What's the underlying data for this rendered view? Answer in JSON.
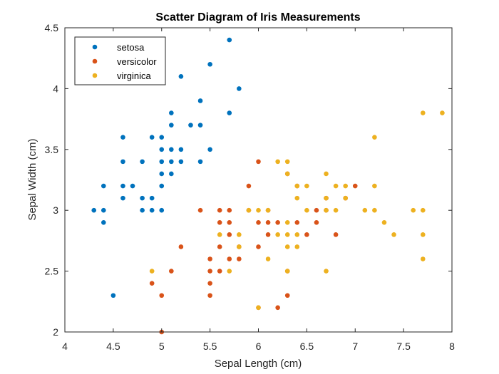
{
  "chart_data": {
    "type": "scatter",
    "title": "Scatter Diagram of Iris Measurements",
    "xlabel": "Sepal Length (cm)",
    "ylabel": "Sepal Width (cm)",
    "xlim": [
      4,
      8
    ],
    "ylim": [
      2,
      4.5
    ],
    "xticks": [
      4,
      4.5,
      5,
      5.5,
      6,
      6.5,
      7,
      7.5,
      8
    ],
    "xtick_labels": [
      "4",
      "4.5",
      "5",
      "5.5",
      "6",
      "6.5",
      "7",
      "7.5",
      "8"
    ],
    "yticks": [
      2,
      2.5,
      3,
      3.5,
      4,
      4.5
    ],
    "ytick_labels": [
      "2",
      "2.5",
      "3",
      "3.5",
      "4",
      "4.5"
    ],
    "grid": false,
    "legend_position": "top-left",
    "series": [
      {
        "name": "setosa",
        "color": "#0072BD",
        "points": [
          [
            4.3,
            3.0
          ],
          [
            4.4,
            3.0
          ],
          [
            4.4,
            2.9
          ],
          [
            4.4,
            3.2
          ],
          [
            4.5,
            2.3
          ],
          [
            4.6,
            3.1
          ],
          [
            4.6,
            3.2
          ],
          [
            4.6,
            3.4
          ],
          [
            4.6,
            3.6
          ],
          [
            4.7,
            3.2
          ],
          [
            4.8,
            3.0
          ],
          [
            4.8,
            3.1
          ],
          [
            4.8,
            3.4
          ],
          [
            4.9,
            3.0
          ],
          [
            4.9,
            3.1
          ],
          [
            4.9,
            3.6
          ],
          [
            5.0,
            3.0
          ],
          [
            5.0,
            3.2
          ],
          [
            5.0,
            3.3
          ],
          [
            5.0,
            3.4
          ],
          [
            5.0,
            3.5
          ],
          [
            5.0,
            3.6
          ],
          [
            5.1,
            3.3
          ],
          [
            5.1,
            3.4
          ],
          [
            5.1,
            3.5
          ],
          [
            5.1,
            3.7
          ],
          [
            5.1,
            3.8
          ],
          [
            5.2,
            3.4
          ],
          [
            5.2,
            3.5
          ],
          [
            5.2,
            4.1
          ],
          [
            5.3,
            3.7
          ],
          [
            5.4,
            3.4
          ],
          [
            5.4,
            3.7
          ],
          [
            5.4,
            3.9
          ],
          [
            5.5,
            3.5
          ],
          [
            5.5,
            4.2
          ],
          [
            5.7,
            3.8
          ],
          [
            5.7,
            4.4
          ],
          [
            5.8,
            4.0
          ]
        ]
      },
      {
        "name": "versicolor",
        "color": "#D95319",
        "points": [
          [
            4.9,
            2.4
          ],
          [
            5.0,
            2.0
          ],
          [
            5.0,
            2.3
          ],
          [
            5.1,
            2.5
          ],
          [
            5.2,
            2.7
          ],
          [
            5.4,
            3.0
          ],
          [
            5.5,
            2.3
          ],
          [
            5.5,
            2.4
          ],
          [
            5.5,
            2.5
          ],
          [
            5.5,
            2.6
          ],
          [
            5.6,
            2.5
          ],
          [
            5.6,
            2.7
          ],
          [
            5.6,
            2.9
          ],
          [
            5.6,
            3.0
          ],
          [
            5.7,
            2.6
          ],
          [
            5.7,
            2.8
          ],
          [
            5.7,
            2.9
          ],
          [
            5.7,
            3.0
          ],
          [
            5.8,
            2.6
          ],
          [
            5.8,
            2.7
          ],
          [
            5.9,
            3.0
          ],
          [
            5.9,
            3.2
          ],
          [
            6.0,
            2.2
          ],
          [
            6.0,
            2.7
          ],
          [
            6.0,
            2.9
          ],
          [
            6.0,
            3.4
          ],
          [
            6.1,
            2.8
          ],
          [
            6.1,
            2.9
          ],
          [
            6.1,
            3.0
          ],
          [
            6.2,
            2.2
          ],
          [
            6.2,
            2.9
          ],
          [
            6.3,
            2.3
          ],
          [
            6.3,
            2.5
          ],
          [
            6.3,
            3.3
          ],
          [
            6.4,
            2.9
          ],
          [
            6.4,
            3.2
          ],
          [
            6.5,
            2.8
          ],
          [
            6.6,
            2.9
          ],
          [
            6.6,
            3.0
          ],
          [
            6.7,
            3.0
          ],
          [
            6.7,
            3.1
          ],
          [
            6.8,
            2.8
          ],
          [
            6.9,
            3.1
          ],
          [
            7.0,
            3.2
          ]
        ]
      },
      {
        "name": "virginica",
        "color": "#EDB120",
        "points": [
          [
            4.9,
            2.5
          ],
          [
            5.6,
            2.8
          ],
          [
            5.7,
            2.5
          ],
          [
            5.8,
            2.7
          ],
          [
            5.8,
            2.8
          ],
          [
            5.9,
            3.0
          ],
          [
            6.0,
            2.2
          ],
          [
            6.0,
            3.0
          ],
          [
            6.1,
            2.6
          ],
          [
            6.1,
            3.0
          ],
          [
            6.2,
            2.8
          ],
          [
            6.2,
            3.4
          ],
          [
            6.3,
            2.5
          ],
          [
            6.3,
            2.7
          ],
          [
            6.3,
            2.8
          ],
          [
            6.3,
            2.9
          ],
          [
            6.3,
            3.3
          ],
          [
            6.3,
            3.4
          ],
          [
            6.4,
            2.7
          ],
          [
            6.4,
            2.8
          ],
          [
            6.4,
            3.1
          ],
          [
            6.4,
            3.2
          ],
          [
            6.5,
            3.0
          ],
          [
            6.5,
            3.2
          ],
          [
            6.7,
            2.5
          ],
          [
            6.7,
            3.0
          ],
          [
            6.7,
            3.1
          ],
          [
            6.7,
            3.3
          ],
          [
            6.8,
            3.0
          ],
          [
            6.8,
            3.2
          ],
          [
            6.9,
            3.1
          ],
          [
            6.9,
            3.2
          ],
          [
            7.1,
            3.0
          ],
          [
            7.2,
            3.0
          ],
          [
            7.2,
            3.2
          ],
          [
            7.2,
            3.6
          ],
          [
            7.3,
            2.9
          ],
          [
            7.4,
            2.8
          ],
          [
            7.6,
            3.0
          ],
          [
            7.7,
            2.6
          ],
          [
            7.7,
            2.8
          ],
          [
            7.7,
            3.0
          ],
          [
            7.7,
            3.8
          ],
          [
            7.9,
            3.8
          ]
        ]
      }
    ]
  }
}
